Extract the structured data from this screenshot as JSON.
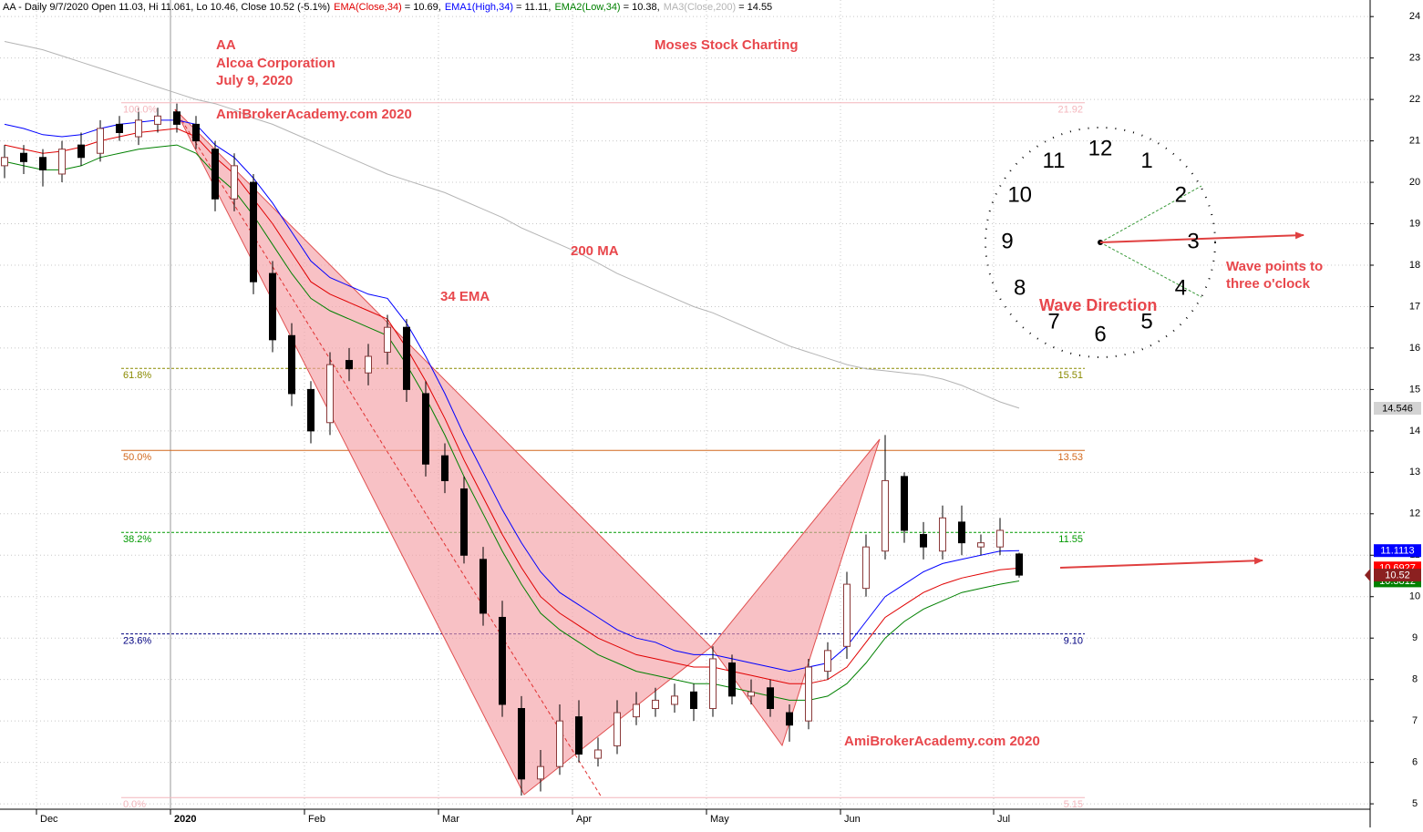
{
  "chart_data": {
    "type": "candlestick",
    "header_text": "AA - Daily 9/7/2020 Open 11.03, Hi 11.061, Lo 10.46, Close 10.52 (-5.1%)",
    "categories": [
      null,
      null,
      "Dec",
      null,
      null,
      null,
      null,
      null,
      null,
      "2020",
      null,
      null,
      null,
      null,
      null,
      null,
      "Feb",
      null,
      null,
      null,
      null,
      null,
      null,
      "Mar",
      null,
      null,
      null,
      null,
      null,
      null,
      "Apr",
      null,
      null,
      null,
      null,
      null,
      null,
      "May",
      null,
      null,
      null,
      null,
      null,
      null,
      "Jun",
      null,
      null,
      null,
      null,
      null,
      null,
      null,
      "Jul",
      null
    ],
    "open": [
      20.4,
      20.7,
      20.6,
      20.2,
      20.9,
      20.7,
      21.4,
      21.1,
      21.4,
      21.7,
      21.4,
      20.8,
      19.6,
      20.0,
      17.8,
      16.3,
      15.0,
      14.2,
      15.7,
      15.4,
      15.9,
      16.5,
      14.9,
      13.4,
      12.6,
      10.9,
      9.5,
      7.3,
      5.6,
      5.9,
      7.1,
      6.1,
      6.4,
      7.1,
      7.3,
      7.4,
      7.7,
      7.3,
      8.4,
      7.6,
      7.8,
      7.2,
      7.0,
      8.2,
      8.8,
      10.2,
      11.1,
      12.9,
      11.5,
      11.1,
      11.8,
      11.2,
      11.2,
      11.03
    ],
    "high": [
      20.9,
      20.9,
      20.8,
      21.0,
      21.2,
      21.5,
      21.6,
      21.8,
      21.8,
      21.9,
      21.6,
      21.0,
      20.7,
      20.2,
      18.1,
      16.6,
      15.2,
      15.9,
      16.0,
      16.1,
      16.8,
      16.7,
      15.2,
      13.7,
      12.9,
      11.2,
      9.9,
      7.6,
      6.3,
      7.4,
      7.5,
      6.6,
      7.5,
      7.7,
      7.8,
      7.9,
      7.9,
      8.8,
      8.6,
      8.0,
      8.0,
      7.4,
      8.5,
      8.9,
      10.6,
      11.5,
      13.9,
      13.0,
      11.8,
      12.2,
      12.2,
      11.5,
      11.9,
      11.061
    ],
    "low": [
      20.1,
      20.2,
      19.9,
      20.0,
      20.4,
      20.5,
      21.0,
      20.9,
      21.2,
      21.2,
      20.8,
      19.3,
      19.3,
      17.3,
      15.9,
      14.6,
      13.7,
      13.9,
      15.2,
      15.1,
      15.6,
      14.7,
      12.9,
      12.5,
      10.8,
      9.3,
      7.1,
      5.2,
      5.3,
      5.7,
      6.0,
      5.9,
      6.2,
      6.9,
      7.1,
      7.2,
      7.0,
      7.1,
      7.4,
      7.4,
      7.1,
      6.5,
      6.8,
      8.0,
      8.5,
      10.0,
      10.9,
      11.3,
      10.9,
      10.9,
      11.0,
      11.0,
      11.0,
      10.46
    ],
    "close": [
      20.6,
      20.5,
      20.3,
      20.8,
      20.6,
      21.3,
      21.2,
      21.5,
      21.6,
      21.4,
      21.0,
      19.6,
      20.4,
      17.6,
      16.2,
      14.9,
      14.0,
      15.6,
      15.5,
      15.8,
      16.5,
      15.0,
      13.2,
      12.8,
      11.0,
      9.6,
      7.4,
      5.6,
      5.9,
      7.0,
      6.2,
      6.3,
      7.2,
      7.4,
      7.5,
      7.6,
      7.3,
      8.5,
      7.6,
      7.7,
      7.3,
      6.9,
      8.3,
      8.7,
      10.3,
      11.2,
      12.8,
      11.6,
      11.2,
      11.9,
      11.3,
      11.3,
      11.6,
      10.52
    ],
    "up_color": "#8b3a3a",
    "down_color": "#000000",
    "close_badge_color": "#8b2020",
    "series": [
      {
        "name": "EMA(Close,34)",
        "readout": "= 10.69,",
        "color": "#e00000",
        "badge_color": "#ff0000",
        "last_value": 10.6927,
        "values": [
          20.9,
          20.8,
          20.7,
          20.75,
          20.85,
          21.0,
          21.1,
          21.2,
          21.25,
          21.3,
          21.1,
          20.6,
          20.2,
          19.6,
          19.0,
          18.3,
          17.6,
          17.3,
          17.1,
          16.9,
          16.7,
          16.0,
          15.2,
          14.3,
          13.3,
          12.4,
          11.5,
          10.7,
          10.0,
          9.6,
          9.3,
          9.0,
          8.8,
          8.6,
          8.5,
          8.4,
          8.3,
          8.3,
          8.2,
          8.1,
          8.0,
          7.9,
          7.9,
          8.0,
          8.3,
          8.9,
          9.5,
          9.8,
          10.1,
          10.3,
          10.45,
          10.55,
          10.65,
          10.69
        ]
      },
      {
        "name": "EMA1(High,34)",
        "readout": "= 11.11,",
        "color": "#0000ff",
        "badge_color": "#0000ff",
        "last_value": 11.1113,
        "values": [
          21.4,
          21.3,
          21.15,
          21.1,
          21.15,
          21.3,
          21.4,
          21.45,
          21.5,
          21.5,
          21.4,
          20.9,
          20.6,
          20.1,
          19.5,
          18.8,
          18.1,
          17.7,
          17.5,
          17.3,
          17.2,
          16.6,
          15.8,
          14.9,
          13.9,
          13.0,
          12.1,
          11.3,
          10.6,
          10.1,
          9.8,
          9.5,
          9.2,
          9.0,
          8.9,
          8.7,
          8.6,
          8.6,
          8.5,
          8.4,
          8.3,
          8.2,
          8.3,
          8.4,
          8.8,
          9.4,
          10.0,
          10.3,
          10.6,
          10.8,
          10.9,
          11.0,
          11.1,
          11.11
        ]
      },
      {
        "name": "EMA2(Low,34)",
        "readout": "= 10.38,",
        "color": "#008000",
        "badge_color": "#008000",
        "last_value": 10.3812,
        "values": [
          20.5,
          20.4,
          20.3,
          20.3,
          20.4,
          20.6,
          20.7,
          20.8,
          20.85,
          20.9,
          20.7,
          20.2,
          19.8,
          19.2,
          18.5,
          17.8,
          17.2,
          16.9,
          16.7,
          16.5,
          16.3,
          15.6,
          14.8,
          13.9,
          12.9,
          12.0,
          11.1,
          10.3,
          9.6,
          9.2,
          8.9,
          8.6,
          8.4,
          8.2,
          8.1,
          8.0,
          7.9,
          7.9,
          7.8,
          7.7,
          7.6,
          7.5,
          7.5,
          7.6,
          7.9,
          8.4,
          9.0,
          9.4,
          9.7,
          9.9,
          10.1,
          10.2,
          10.3,
          10.38
        ]
      },
      {
        "name": "MA3(Close,200)",
        "readout": "= 14.55",
        "color": "#b4b4b4",
        "badge_color": "#d3d3d3",
        "last_value": 14.546,
        "values": [
          23.4,
          23.3,
          23.2,
          23.05,
          22.9,
          22.75,
          22.6,
          22.45,
          22.3,
          22.15,
          22.0,
          21.9,
          21.75,
          21.55,
          21.4,
          21.2,
          21.0,
          20.8,
          20.6,
          20.4,
          20.2,
          20.05,
          19.9,
          19.75,
          19.55,
          19.35,
          19.15,
          18.9,
          18.7,
          18.5,
          18.3,
          18.05,
          17.8,
          17.6,
          17.4,
          17.2,
          17.0,
          16.85,
          16.65,
          16.45,
          16.25,
          16.05,
          15.9,
          15.75,
          15.6,
          15.5,
          15.45,
          15.4,
          15.35,
          15.25,
          15.1,
          14.9,
          14.7,
          14.55
        ]
      }
    ],
    "ylim": [
      4.43,
      24.4
    ],
    "yticks": [
      5,
      6,
      7,
      8,
      9,
      10,
      11,
      12,
      13,
      14,
      15,
      16,
      17,
      18,
      19,
      20,
      21,
      22,
      23,
      24
    ],
    "grid": true,
    "fib_levels": [
      {
        "label": "100.0%",
        "value": 21.92,
        "color": "#f4b6bc",
        "dashed": false
      },
      {
        "label": "61.8%",
        "value": 15.51,
        "color": "#8a8a00",
        "dashed": true
      },
      {
        "label": "50.0%",
        "value": 13.53,
        "color": "#d2691e",
        "dashed": false
      },
      {
        "label": "38.2%",
        "value": 11.55,
        "color": "#009900",
        "dashed": true
      },
      {
        "label": "23.6%",
        "value": {
          "value": 9.1,
          "label": "9.10"
        },
        "color": "#000080",
        "dashed": true
      },
      {
        "label": "0.0%",
        "value": 5.15,
        "color": "#f4b6bc",
        "dashed": false
      }
    ],
    "annotation_color": "#e8474c",
    "annotations": [
      "AA",
      "Alcoa Corporation",
      "July 9, 2020",
      "Moses Stock Charting",
      "AmiBrokerAcademy.com 2020",
      "200 MA",
      "34 EMA",
      "Wave Direction",
      "Wave points to",
      "three o'clock",
      "AmiBrokerAcademy.com  2020"
    ],
    "clock_numbers": [
      "12",
      "1",
      "2",
      "3",
      "4",
      "5",
      "6",
      "7",
      "8",
      "9",
      "10",
      "11"
    ]
  }
}
